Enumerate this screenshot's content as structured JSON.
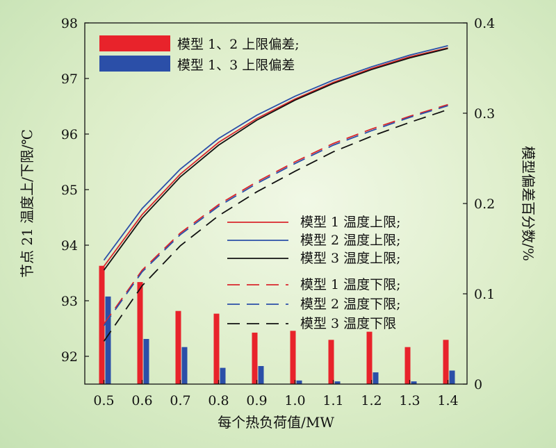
{
  "chart_data": {
    "type": "line+bar",
    "x": [
      0.5,
      0.6,
      0.7,
      0.8,
      0.9,
      1.0,
      1.1,
      1.2,
      1.3,
      1.4
    ],
    "xlabel": "每个热负荷值/MW",
    "ylabel_left": "节点 21 温度上/下限/℃",
    "ylabel_right": "模型偏差百分数/%",
    "ylim_left": [
      91.5,
      98
    ],
    "ylim_right": [
      0,
      0.4
    ],
    "xlim": [
      0.45,
      1.45
    ],
    "x_ticks": [
      "0.5",
      "0.6",
      "0.7",
      "0.8",
      "0.9",
      "1.0",
      "1.1",
      "1.2",
      "1.3",
      "1.4"
    ],
    "y_left_ticks": [
      "92",
      "93",
      "94",
      "95",
      "96",
      "97",
      "98"
    ],
    "y_right_ticks": [
      "0",
      "0.1",
      "0.2",
      "0.3",
      "0.4"
    ],
    "line_series": [
      {
        "name": "模型 1 温度上限;",
        "color": "#d9262c",
        "dash": false,
        "values": [
          93.62,
          94.55,
          95.28,
          95.85,
          96.28,
          96.63,
          96.93,
          97.18,
          97.39,
          97.55
        ]
      },
      {
        "name": "模型 2 温度上限;",
        "color": "#2b4fa8",
        "dash": false,
        "values": [
          93.73,
          94.66,
          95.37,
          95.92,
          96.34,
          96.68,
          96.97,
          97.21,
          97.42,
          97.59
        ]
      },
      {
        "name": "模型 3 温度上限;",
        "color": "#111111",
        "dash": false,
        "values": [
          93.55,
          94.49,
          95.23,
          95.8,
          96.25,
          96.61,
          96.91,
          97.16,
          97.37,
          97.54
        ]
      },
      {
        "name": "模型 1 温度下限;",
        "color": "#d9262c",
        "dash": true,
        "values": [
          92.58,
          93.55,
          94.22,
          94.73,
          95.14,
          95.5,
          95.83,
          96.09,
          96.32,
          96.53
        ]
      },
      {
        "name": "模型 2 温度下限;",
        "color": "#2b4fa8",
        "dash": true,
        "values": [
          92.55,
          93.52,
          94.19,
          94.7,
          95.11,
          95.47,
          95.8,
          96.06,
          96.3,
          96.51
        ]
      },
      {
        "name": "模型 3 温度下限",
        "color": "#111111",
        "dash": true,
        "values": [
          92.27,
          93.27,
          93.99,
          94.53,
          94.96,
          95.33,
          95.68,
          95.96,
          96.21,
          96.44
        ]
      }
    ],
    "bar_series": [
      {
        "name": "模型 1、2 上限偏差;",
        "color": "#e8232b",
        "values": [
          0.131,
          0.113,
          0.081,
          0.078,
          0.057,
          0.059,
          0.049,
          0.058,
          0.041,
          0.049
        ]
      },
      {
        "name": "模型 1、3 上限偏差",
        "color": "#2b4fa8",
        "values": [
          0.097,
          0.05,
          0.041,
          0.018,
          0.02,
          0.004,
          0.003,
          0.013,
          0.003,
          0.015
        ]
      }
    ],
    "legend_bars_position": "top-left",
    "legend_lines_position": "center-right",
    "grid": false
  }
}
